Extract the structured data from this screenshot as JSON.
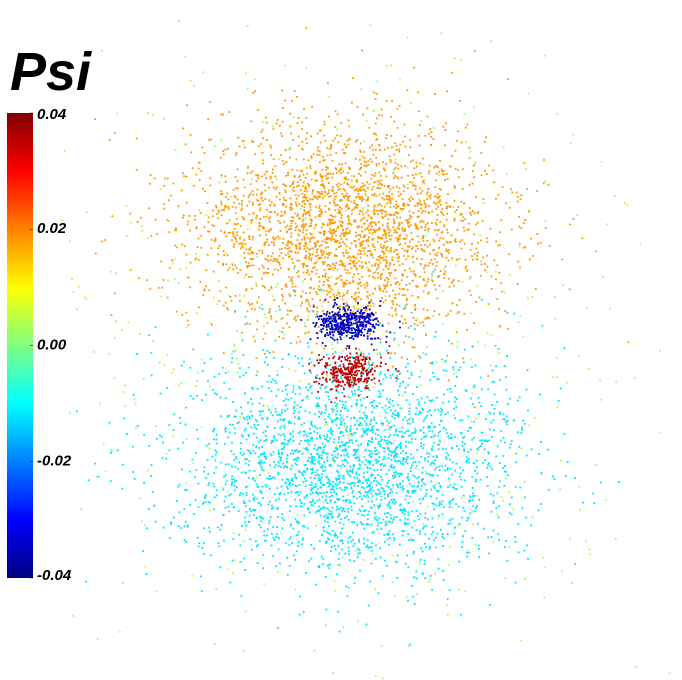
{
  "chart_data": {
    "type": "scatter",
    "title": "Psi",
    "colormap": "jet",
    "clim": [
      -0.04,
      0.04
    ],
    "cticks": [
      0.04,
      0.02,
      {
        "value": 0,
        "label": "0.00"
      },
      -0.02,
      -0.04
    ],
    "values": [
      0.018,
      -0.035,
      0.035,
      -0.012,
      0.003
    ]
  }
}
